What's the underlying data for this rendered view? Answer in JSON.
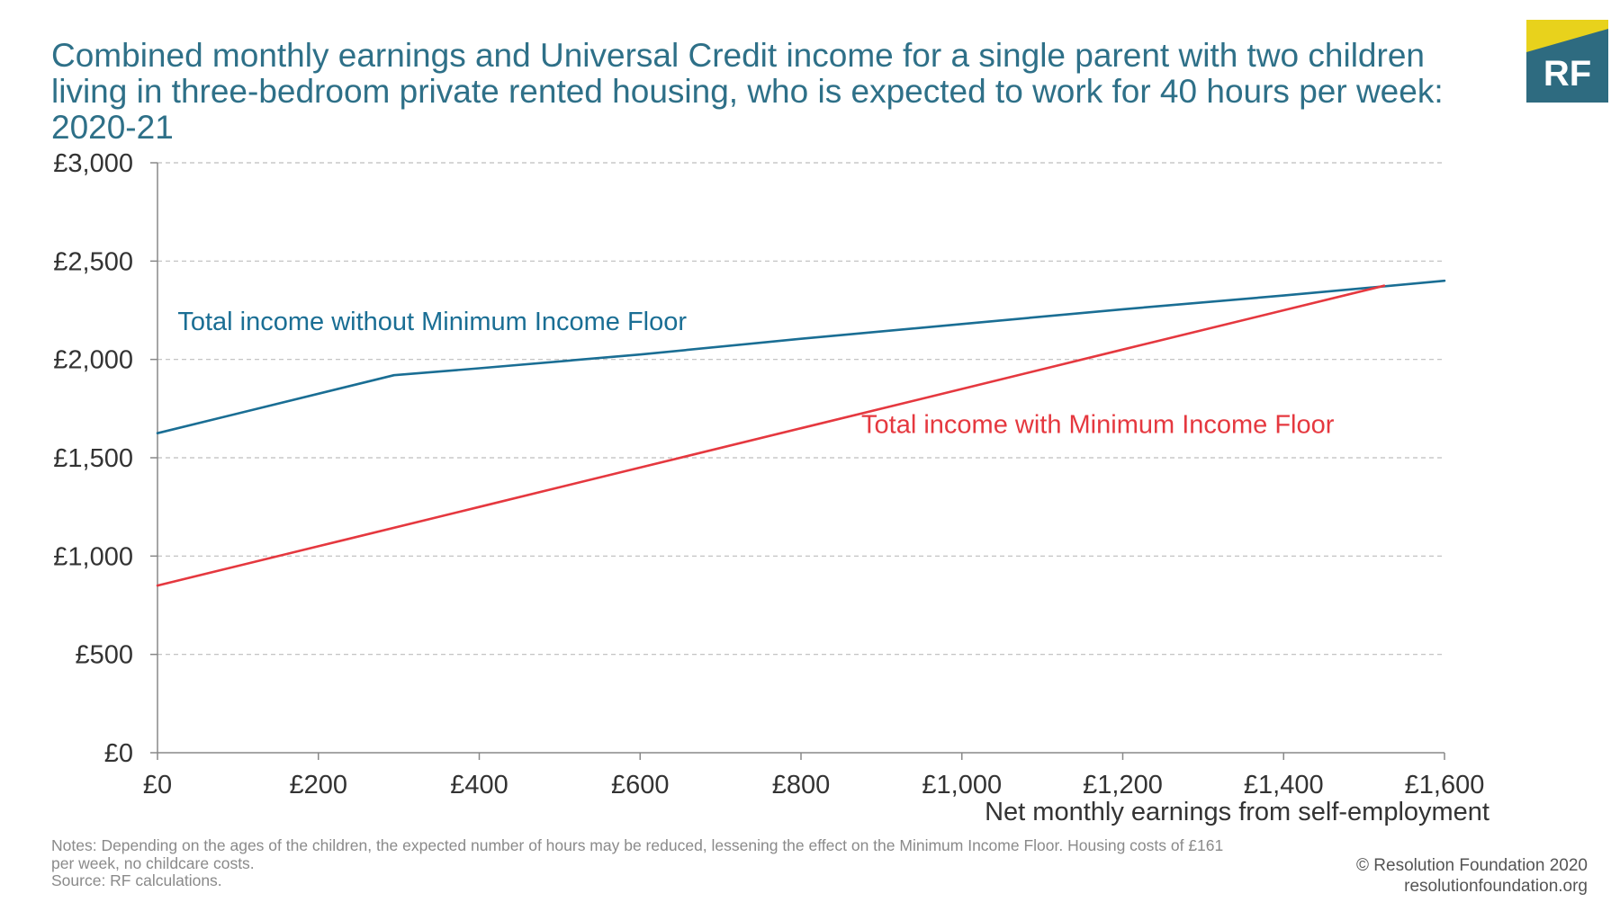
{
  "title": "Combined monthly earnings and Universal Credit income for a single parent with two children living in three-bedroom private rented housing, who is expected to work for 40 hours per week: 2020-21",
  "logo": {
    "text": "RF",
    "colors": {
      "teal": "#2E6B80",
      "yellow": "#E8D21C",
      "text": "#ffffff"
    }
  },
  "colors": {
    "title": "#2E7088",
    "without_mif": "#1A6E94",
    "with_mif": "#E5383F",
    "grid": "#bdbdbd",
    "axis": "#888888"
  },
  "chart_data": {
    "type": "line",
    "title": "Combined monthly earnings and Universal Credit income for a single parent with two children living in three-bedroom private rented housing, who is expected to work for 40 hours per week: 2020-21",
    "xlabel": "Net monthly earnings from self-employment",
    "ylabel": "",
    "xlim": [
      0,
      1600
    ],
    "ylim": [
      0,
      3000
    ],
    "x_ticks": [
      0,
      200,
      400,
      600,
      800,
      1000,
      1200,
      1400,
      1600
    ],
    "x_tick_labels": [
      "£0",
      "£200",
      "£400",
      "£600",
      "£800",
      "£1,000",
      "£1,200",
      "£1,400",
      "£1,600"
    ],
    "y_ticks": [
      0,
      500,
      1000,
      1500,
      2000,
      2500,
      3000
    ],
    "y_tick_labels": [
      "£0",
      "£500",
      "£1,000",
      "£1,500",
      "£2,000",
      "£2,500",
      "£3,000"
    ],
    "grid": "horizontal dashed",
    "series": [
      {
        "name": "Total income without Minimum Income Floor",
        "color": "#1A6E94",
        "x": [
          0,
          294,
          400,
          600,
          800,
          1000,
          1200,
          1400,
          1600
        ],
        "y": [
          1625,
          1920,
          1955,
          2025,
          2105,
          2180,
          2255,
          2325,
          2400
        ]
      },
      {
        "name": "Total income with Minimum Income Floor",
        "color": "#E5383F",
        "x": [
          0,
          200,
          400,
          600,
          800,
          1000,
          1200,
          1400,
          1525
        ],
        "y": [
          850,
          1050,
          1250,
          1450,
          1650,
          1850,
          2050,
          2250,
          2375
        ]
      }
    ],
    "annotations": [
      {
        "text": "Total income without Minimum Income Floor",
        "series": 0,
        "x": 25,
        "y": 2150
      },
      {
        "text": "Total income with Minimum Income Floor",
        "series": 1,
        "x": 875,
        "y": 1625
      }
    ]
  },
  "notes": {
    "line1": "Notes: Depending on the ages of the children, the expected number of hours may be reduced, lessening the effect on the Minimum Income Floor. Housing costs of £161",
    "line2": "per week, no childcare costs.",
    "source": "Source: RF calculations."
  },
  "credits": {
    "copyright": "© Resolution Foundation 2020",
    "website": "resolutionfoundation.org"
  }
}
